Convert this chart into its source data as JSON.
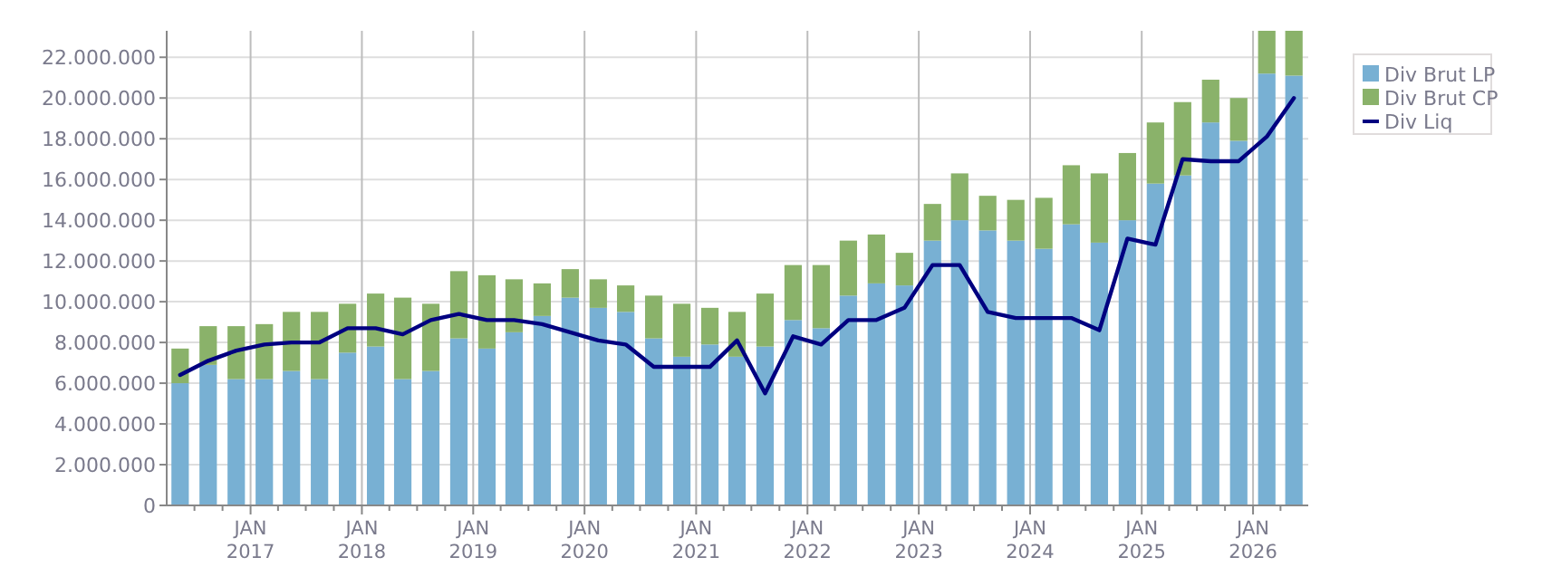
{
  "chart_data": {
    "type": "bar",
    "stacked": true,
    "x": [
      "2016-05-15",
      "2016-08-15",
      "2016-11-15",
      "2017-02-15",
      "2017-05-15",
      "2017-08-15",
      "2017-11-15",
      "2018-02-15",
      "2018-05-15",
      "2018-08-15",
      "2018-11-15",
      "2019-02-15",
      "2019-05-15",
      "2019-08-15",
      "2019-11-15",
      "2020-02-15",
      "2020-05-15",
      "2020-08-15",
      "2020-11-15",
      "2021-02-15",
      "2021-05-15",
      "2021-08-15",
      "2021-11-15",
      "2022-02-15",
      "2022-05-15",
      "2022-08-15",
      "2022-11-15",
      "2023-02-15",
      "2023-05-15",
      "2023-08-15",
      "2023-11-15",
      "2024-02-15",
      "2024-05-15",
      "2024-08-15",
      "2024-11-15",
      "2025-02-15",
      "2025-05-15",
      "2025-08-15",
      "2025-11-15",
      "2026-02-15",
      "2026-05-15"
    ],
    "series": [
      {
        "name": "Div Brut LP",
        "color": "#78b0d3",
        "values": [
          6000000,
          6900000,
          6200000,
          6200000,
          6600000,
          6200000,
          7500000,
          7800000,
          6200000,
          6600000,
          8200000,
          7700000,
          8500000,
          9300000,
          10200000,
          9700000,
          9500000,
          8200000,
          7300000,
          7900000,
          7300000,
          7800000,
          9100000,
          8700000,
          10300000,
          10900000,
          10800000,
          13000000,
          14000000,
          13500000,
          13000000,
          12600000,
          13800000,
          12900000,
          14000000,
          15800000,
          16200000,
          18800000,
          17900000,
          21200000,
          21100000
        ]
      },
      {
        "name": "Div Brut CP",
        "color": "#8ab26a",
        "values": [
          1700000,
          1900000,
          2600000,
          2700000,
          2900000,
          3300000,
          2400000,
          2600000,
          4000000,
          3300000,
          3300000,
          3600000,
          2600000,
          1600000,
          1400000,
          1400000,
          1300000,
          2100000,
          2600000,
          1800000,
          2200000,
          2600000,
          2700000,
          3100000,
          2700000,
          2400000,
          1600000,
          1800000,
          2300000,
          1700000,
          2000000,
          2500000,
          2900000,
          3400000,
          3300000,
          3000000,
          3600000,
          2100000,
          2100000,
          2100000,
          2200000
        ]
      },
      {
        "name": "Div Liq",
        "type": "line",
        "color": "#000080",
        "values": [
          6400000,
          7100000,
          7600000,
          7900000,
          8000000,
          8000000,
          8700000,
          8700000,
          8400000,
          9100000,
          9400000,
          9100000,
          9100000,
          8900000,
          8500000,
          8100000,
          7900000,
          6800000,
          6800000,
          6800000,
          8100000,
          5500000,
          8300000,
          7900000,
          9100000,
          9100000,
          9700000,
          11800000,
          11800000,
          9500000,
          9200000,
          9200000,
          9200000,
          8600000,
          13100000,
          12800000,
          17000000,
          16900000,
          16900000,
          18100000,
          20000000
        ]
      }
    ],
    "xlim": [
      "2016-04-01",
      "2026-07-01"
    ],
    "xticks": [
      {
        "value": "2016-07-01",
        "label": null
      },
      {
        "value": "2016-10-01",
        "label": null
      },
      {
        "value": "2017-01-01",
        "label": "JAN 2017"
      },
      {
        "value": "2017-04-01",
        "label": null
      },
      {
        "value": "2017-07-01",
        "label": null
      },
      {
        "value": "2017-10-01",
        "label": null
      },
      {
        "value": "2018-01-01",
        "label": "JAN 2018"
      },
      {
        "value": "2018-04-01",
        "label": null
      },
      {
        "value": "2018-07-01",
        "label": null
      },
      {
        "value": "2018-10-01",
        "label": null
      },
      {
        "value": "2019-01-01",
        "label": "JAN 2019"
      },
      {
        "value": "2019-04-01",
        "label": null
      },
      {
        "value": "2019-07-01",
        "label": null
      },
      {
        "value": "2019-10-01",
        "label": null
      },
      {
        "value": "2020-01-01",
        "label": "JAN 2020"
      },
      {
        "value": "2020-04-01",
        "label": null
      },
      {
        "value": "2020-07-01",
        "label": null
      },
      {
        "value": "2020-10-01",
        "label": null
      },
      {
        "value": "2021-01-01",
        "label": "JAN 2021"
      },
      {
        "value": "2021-04-01",
        "label": null
      },
      {
        "value": "2021-07-01",
        "label": null
      },
      {
        "value": "2021-10-01",
        "label": null
      },
      {
        "value": "2022-01-01",
        "label": "JAN 2022"
      },
      {
        "value": "2022-04-01",
        "label": null
      },
      {
        "value": "2022-07-01",
        "label": null
      },
      {
        "value": "2022-10-01",
        "label": null
      },
      {
        "value": "2023-01-01",
        "label": "JAN 2023"
      },
      {
        "value": "2023-04-01",
        "label": null
      },
      {
        "value": "2023-07-01",
        "label": null
      },
      {
        "value": "2023-10-01",
        "label": null
      },
      {
        "value": "2024-01-01",
        "label": "JAN 2024"
      },
      {
        "value": "2024-04-01",
        "label": null
      },
      {
        "value": "2024-07-01",
        "label": null
      },
      {
        "value": "2024-10-01",
        "label": null
      },
      {
        "value": "2025-01-01",
        "label": "JAN 2025"
      },
      {
        "value": "2025-04-01",
        "label": null
      },
      {
        "value": "2025-07-01",
        "label": null
      },
      {
        "value": "2025-10-01",
        "label": null
      },
      {
        "value": "2026-01-01",
        "label": "JAN 2026"
      },
      {
        "value": "2026-04-01",
        "label": null
      }
    ],
    "ylim": [
      0,
      23300000
    ],
    "yticks": [
      {
        "value": 0,
        "label": "0"
      },
      {
        "value": 2000000,
        "label": "2.000.000"
      },
      {
        "value": 4000000,
        "label": "4.000.000"
      },
      {
        "value": 6000000,
        "label": "6.000.000"
      },
      {
        "value": 8000000,
        "label": "8.000.000"
      },
      {
        "value": 10000000,
        "label": "10.000.000"
      },
      {
        "value": 12000000,
        "label": "12.000.000"
      },
      {
        "value": 14000000,
        "label": "14.000.000"
      },
      {
        "value": 16000000,
        "label": "16.000.000"
      },
      {
        "value": 18000000,
        "label": "18.000.000"
      },
      {
        "value": 20000000,
        "label": "20.000.000"
      },
      {
        "value": 22000000,
        "label": "22.000.000"
      }
    ],
    "grid": true,
    "legend": "top right",
    "marker": "none",
    "line_style": "solid"
  }
}
